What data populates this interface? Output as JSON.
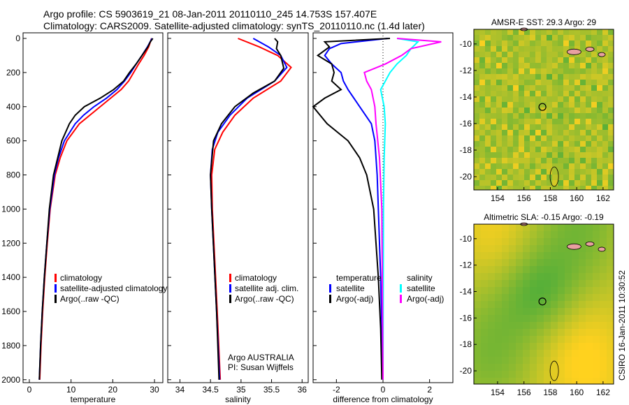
{
  "header": {
    "line1": "Argo profile: CS 5903619_21 08-Jan-2011 20110110_245 14.753S 157.407E",
    "line2": "Climatology: CARS2009. Satellite-adjusted climatology: synTS_20110110.nc (1.4d later)"
  },
  "side_label": "CSIRO 16-Jan-2011 10:30:52",
  "chart_data": [
    {
      "type": "line",
      "id": "temp",
      "xlabel": "temperature",
      "xlim": [
        -1.5,
        32
      ],
      "ylim": [
        2050,
        0
      ],
      "xticks": [
        0,
        10,
        20,
        30
      ],
      "yticks": [
        0,
        200,
        400,
        600,
        800,
        1000,
        1200,
        1400,
        1600,
        1800,
        2000
      ],
      "legend": [
        "climatology",
        "satellite-adjusted climatology",
        "Argo(..raw -QC)"
      ],
      "series": [
        {
          "name": "climatology",
          "color": "#ff0000",
          "depth": [
            0,
            50,
            100,
            150,
            200,
            250,
            300,
            350,
            400,
            450,
            500,
            600,
            700,
            800,
            1000,
            1200,
            1400,
            1600,
            1800,
            2000
          ],
          "values": [
            29.3,
            28.6,
            27.5,
            26.2,
            25,
            23.8,
            22,
            19.5,
            17,
            14.5,
            12,
            9,
            7.4,
            6.2,
            5,
            4.3,
            3.7,
            3.2,
            2.8,
            2.5
          ]
        },
        {
          "name": "satellite-adjusted climatology",
          "color": "#0000ff",
          "depth": [
            0,
            50,
            100,
            150,
            200,
            250,
            300,
            350,
            400,
            450,
            500,
            600,
            700,
            800,
            1000,
            1200,
            1400,
            1600,
            1800,
            2000
          ],
          "values": [
            29.4,
            28.3,
            27,
            25.6,
            24.3,
            22.8,
            21,
            18.5,
            15.5,
            13,
            11,
            8.4,
            7,
            6,
            4.9,
            4.2,
            3.6,
            3.1,
            2.7,
            2.4
          ]
        },
        {
          "name": "Argo(..raw -QC)",
          "color": "#000000",
          "depth": [
            0,
            20,
            50,
            100,
            150,
            200,
            250,
            300,
            350,
            400,
            450,
            500,
            600,
            700,
            800,
            1000,
            1200,
            1400,
            1600,
            1800,
            2000
          ],
          "values": [
            29.6,
            29,
            28.4,
            27,
            25.6,
            24,
            22.6,
            20.2,
            17,
            13.2,
            11,
            9.6,
            7.8,
            6.8,
            5.8,
            4.8,
            4.2,
            3.6,
            3.1,
            2.7,
            2.4
          ]
        }
      ]
    },
    {
      "type": "line",
      "id": "sal",
      "xlabel": "salinity",
      "xlim": [
        33.8,
        36.1
      ],
      "ylim": [
        2050,
        0
      ],
      "xticks": [
        34,
        34.5,
        35,
        35.5,
        36
      ],
      "legend": [
        "climatology",
        "satellite adj. clim.",
        "Argo(..raw -QC)"
      ],
      "annotation": [
        "Argo AUSTRALIA",
        "PI: Susan Wijffels"
      ],
      "series": [
        {
          "name": "climatology",
          "color": "#ff0000",
          "depth": [
            0,
            50,
            100,
            170,
            250,
            350,
            450,
            550,
            650,
            800,
            1000,
            1300,
            1600,
            2000
          ],
          "values": [
            34.95,
            35.3,
            35.6,
            35.82,
            35.65,
            35.2,
            34.9,
            34.7,
            34.57,
            34.52,
            34.53,
            34.57,
            34.61,
            34.66
          ]
        },
        {
          "name": "satellite adj. clim.",
          "color": "#0000ff",
          "depth": [
            0,
            50,
            100,
            170,
            250,
            350,
            450,
            550,
            650,
            800,
            1000,
            1300,
            1600,
            2000
          ],
          "values": [
            35.2,
            35.45,
            35.65,
            35.75,
            35.55,
            35.1,
            34.82,
            34.62,
            34.53,
            34.5,
            34.52,
            34.56,
            34.6,
            34.65
          ]
        },
        {
          "name": "Argo(..raw -QC)",
          "color": "#000000",
          "depth": [
            0,
            20,
            60,
            100,
            175,
            250,
            320,
            400,
            500,
            600,
            800,
            1000,
            1300,
            1600,
            2000
          ],
          "values": [
            35.55,
            35.6,
            35.58,
            35.65,
            35.7,
            35.55,
            35.2,
            34.9,
            34.68,
            34.55,
            34.5,
            34.52,
            34.56,
            34.6,
            34.64
          ]
        }
      ]
    },
    {
      "type": "line",
      "id": "diff",
      "xlabel": "difference from climatology",
      "xlim": [
        -3,
        3
      ],
      "ylim": [
        2050,
        0
      ],
      "xticks": [
        -2,
        0,
        2
      ],
      "legend_titles": [
        "temperature",
        "salinity"
      ],
      "legend_left": [
        "satellite",
        "Argo(-adj)"
      ],
      "legend_right": [
        "satellite",
        "Argo(-adj)"
      ],
      "series": [
        {
          "name": "temperature satellite",
          "color": "#0000ff",
          "depth": [
            0,
            30,
            60,
            100,
            150,
            200,
            250,
            300,
            400,
            500,
            600,
            700,
            800,
            1000,
            1400,
            2000
          ],
          "values": [
            0.2,
            -1.8,
            -2.3,
            -2.5,
            -2.2,
            -1.8,
            -1.7,
            -1.5,
            -1,
            -0.5,
            -0.35,
            -0.3,
            -0.25,
            -0.2,
            -0.1,
            0
          ]
        },
        {
          "name": "temperature Argo(-adj)",
          "color": "#000000",
          "depth": [
            0,
            20,
            50,
            100,
            150,
            200,
            250,
            300,
            350,
            400,
            450,
            500,
            600,
            700,
            800,
            1000,
            1200,
            1400,
            1700,
            2000
          ],
          "values": [
            0.3,
            -2.5,
            -2.3,
            -2.8,
            -2.2,
            -2.1,
            -2.2,
            -1.8,
            -2.5,
            -3,
            -2.7,
            -2.4,
            -1.5,
            -1.0,
            -0.7,
            -0.4,
            -0.3,
            -0.2,
            -0.1,
            -0.05
          ]
        },
        {
          "name": "salinity satellite",
          "color": "#00ffff",
          "depth": [
            0,
            20,
            60,
            100,
            150,
            200,
            250,
            300,
            400,
            500,
            700,
            1000,
            2000
          ],
          "values": [
            0.6,
            1.5,
            1.2,
            1.0,
            0.6,
            0.3,
            0.1,
            -0.1,
            0.05,
            0.1,
            0.05,
            0.02,
            0
          ]
        },
        {
          "name": "salinity Argo(-adj)",
          "color": "#ff00ff",
          "depth": [
            0,
            20,
            60,
            100,
            150,
            200,
            250,
            300,
            400,
            500,
            700,
            1000,
            2000
          ],
          "values": [
            0.6,
            2.5,
            1.2,
            0.8,
            0.1,
            -0.8,
            -0.7,
            -0.5,
            -0.35,
            -0.3,
            -0.15,
            -0.05,
            0
          ]
        }
      ]
    },
    {
      "type": "heatmap",
      "id": "sst",
      "title": "AMSR-E SST: 29.3 Argo: 29",
      "xticks": [
        154,
        156,
        158,
        160,
        162
      ],
      "yticks": [
        -10,
        -12,
        -14,
        -16,
        -18,
        -20
      ],
      "lon": [
        152.2,
        162.8
      ],
      "lat": [
        -21,
        -8.9
      ],
      "marker": [
        157.4,
        -14.75
      ]
    },
    {
      "type": "heatmap",
      "id": "sla",
      "title": "Altimetric SLA: -0.15 Argo: -0.19",
      "xticks": [
        154,
        156,
        158,
        160,
        162
      ],
      "yticks": [
        -10,
        -12,
        -14,
        -16,
        -18,
        -20
      ],
      "lon": [
        152.2,
        162.8
      ],
      "lat": [
        -21,
        -8.9
      ],
      "marker": [
        157.4,
        -14.75
      ]
    }
  ]
}
